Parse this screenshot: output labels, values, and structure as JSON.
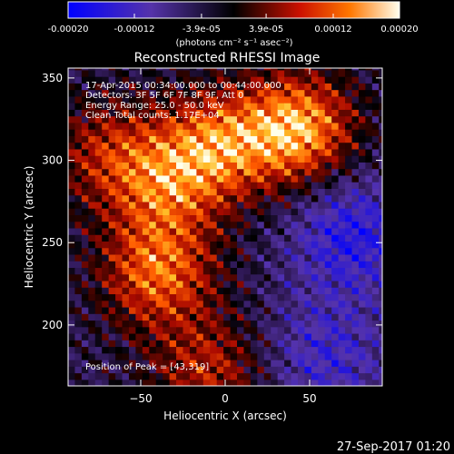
{
  "colorbar": {
    "ticks": [
      {
        "value": -0.0002,
        "label": "-0.00020"
      },
      {
        "value": -0.00012,
        "label": "-0.00012"
      },
      {
        "value": -3.9e-05,
        "label": "-3.9e-05"
      },
      {
        "value": 3.9e-05,
        "label": "3.9e-05"
      },
      {
        "value": 0.00012,
        "label": "0.00012"
      },
      {
        "value": 0.0002,
        "label": "0.00020"
      }
    ],
    "range": [
      -0.0002,
      0.0002
    ],
    "unit_label": "(photons cm⁻² s⁻¹ asec⁻²)"
  },
  "chart_data": {
    "type": "heatmap",
    "title": "Reconstructed RHESSI Image",
    "xlabel": "Heliocentric X (arcsec)",
    "ylabel": "Heliocentric Y (arcsec)",
    "xlim": [
      -93,
      93
    ],
    "ylim": [
      163,
      356
    ],
    "xticks": [
      {
        "value": -50,
        "label": "−50"
      },
      {
        "value": 0,
        "label": "0"
      },
      {
        "value": 50,
        "label": "50"
      }
    ],
    "yticks": [
      {
        "value": 200,
        "label": "200"
      },
      {
        "value": 250,
        "label": "250"
      },
      {
        "value": 300,
        "label": "300"
      },
      {
        "value": 350,
        "label": "350"
      }
    ],
    "annotations": [
      "17-Apr-2015 00:34:00.000 to 00:44:00.000",
      "Detectors: 3F 5F 6F 7F 8F 9F, Att 0",
      "Energy Range: 25.0 - 50.0 keV",
      "Clean     Total counts: 1.17E+04"
    ],
    "peak_label": "Position of Peak = [43,319]",
    "peak": [
      43,
      319
    ],
    "bright_regions": [
      {
        "x": 43,
        "y": 319,
        "level": 0.0002
      },
      {
        "x": -5,
        "y": 310,
        "level": 0.00015
      },
      {
        "x": -35,
        "y": 285,
        "level": 0.00012
      },
      {
        "x": -40,
        "y": 232,
        "level": 0.00016
      },
      {
        "x": -10,
        "y": 172,
        "level": 0.00011
      },
      {
        "x": -70,
        "y": 305,
        "level": 0.0001
      }
    ],
    "dim_regions": [
      {
        "x": 75,
        "y": 255,
        "level": -0.00012
      },
      {
        "x": 60,
        "y": 180,
        "level": -9e-05
      }
    ]
  },
  "timestamp": "27-Sep-2017 01:20"
}
